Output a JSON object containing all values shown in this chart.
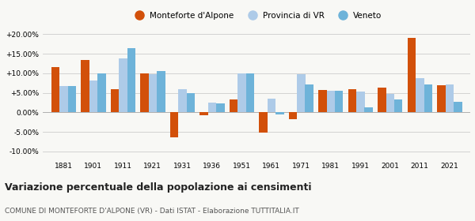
{
  "years": [
    1881,
    1901,
    1911,
    1921,
    1931,
    1936,
    1951,
    1961,
    1971,
    1981,
    1991,
    2001,
    2011,
    2021
  ],
  "monteforte": [
    11.5,
    13.5,
    6.0,
    10.0,
    -6.5,
    -0.8,
    3.3,
    -5.2,
    -1.8,
    5.7,
    6.0,
    6.3,
    19.0,
    7.0
  ],
  "provincia": [
    6.8,
    8.2,
    13.8,
    9.8,
    6.0,
    2.5,
    10.0,
    3.5,
    9.8,
    5.5,
    5.3,
    4.8,
    8.8,
    7.2
  ],
  "veneto": [
    6.7,
    10.0,
    16.5,
    10.5,
    5.0,
    2.3,
    10.0,
    -0.5,
    7.1,
    5.5,
    1.3,
    3.4,
    7.1,
    2.6
  ],
  "color_monteforte": "#D2500A",
  "color_provincia": "#AECBE8",
  "color_veneto": "#6EB3D9",
  "title_main": "Variazione percentuale della popolazione ai censimenti",
  "title_sub": "COMUNE DI MONTEFORTE D'ALPONE (VR) - Dati ISTAT - Elaborazione TUTTITALIA.IT",
  "legend_labels": [
    "Monteforte d'Alpone",
    "Provincia di VR",
    "Veneto"
  ],
  "ylim": [
    -12,
    22
  ],
  "yticks": [
    -10.0,
    -5.0,
    0.0,
    5.0,
    10.0,
    15.0,
    20.0
  ],
  "background_color": "#f8f8f5",
  "grid_color": "#cccccc"
}
